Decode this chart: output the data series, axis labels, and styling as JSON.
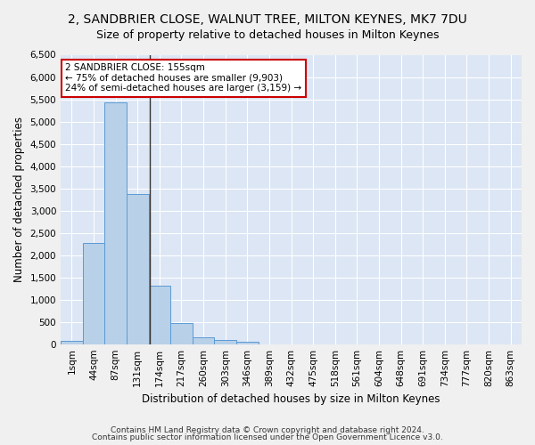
{
  "title": "2, SANDBRIER CLOSE, WALNUT TREE, MILTON KEYNES, MK7 7DU",
  "subtitle": "Size of property relative to detached houses in Milton Keynes",
  "xlabel": "Distribution of detached houses by size in Milton Keynes",
  "ylabel": "Number of detached properties",
  "footer_line1": "Contains HM Land Registry data © Crown copyright and database right 2024.",
  "footer_line2": "Contains public sector information licensed under the Open Government Licence v3.0.",
  "categories": [
    "1sqm",
    "44sqm",
    "87sqm",
    "131sqm",
    "174sqm",
    "217sqm",
    "260sqm",
    "303sqm",
    "346sqm",
    "389sqm",
    "432sqm",
    "475sqm",
    "518sqm",
    "561sqm",
    "604sqm",
    "648sqm",
    "691sqm",
    "734sqm",
    "777sqm",
    "820sqm",
    "863sqm"
  ],
  "values": [
    75,
    2270,
    5430,
    3380,
    1310,
    480,
    160,
    95,
    60,
    0,
    0,
    0,
    0,
    0,
    0,
    0,
    0,
    0,
    0,
    0,
    0
  ],
  "bar_color": "#b8d0e8",
  "bar_edge_color": "#5b9bd5",
  "figure_bg_color": "#f0f0f0",
  "plot_bg_color": "#dce6f5",
  "grid_color": "#ffffff",
  "annotation_box_text": "2 SANDBRIER CLOSE: 155sqm\n← 75% of detached houses are smaller (9,903)\n24% of semi-detached houses are larger (3,159) →",
  "annotation_box_color": "#ffffff",
  "annotation_box_edge_color": "#cc0000",
  "ylim": [
    0,
    6500
  ],
  "yticks": [
    0,
    500,
    1000,
    1500,
    2000,
    2500,
    3000,
    3500,
    4000,
    4500,
    5000,
    5500,
    6000,
    6500
  ],
  "title_fontsize": 10,
  "subtitle_fontsize": 9,
  "axis_label_fontsize": 8.5,
  "tick_fontsize": 7.5,
  "annotation_fontsize": 7.5,
  "footer_fontsize": 6.5
}
